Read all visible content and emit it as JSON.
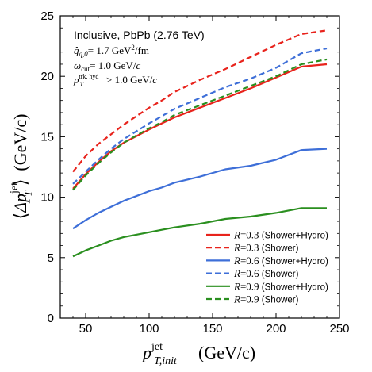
{
  "chart_data": {
    "type": "line",
    "title": "",
    "xlabel": {
      "base": "p",
      "sup": "jet",
      "sub": "T,init",
      "unit": "(GeV/c)"
    },
    "ylabel": {
      "open": "⟨",
      "base": "Δp",
      "sup": "jet",
      "sub": "T",
      "close": "⟩",
      "unit": "(GeV/c)"
    },
    "xlim": [
      30,
      250
    ],
    "ylim": [
      0,
      25
    ],
    "xticks": [
      50,
      100,
      150,
      200,
      250
    ],
    "yticks": [
      0,
      5,
      10,
      15,
      20,
      25
    ],
    "grid": false,
    "legend_position": "bottom-right",
    "annotations": {
      "header": "Inclusive, PbPb (2.76 TeV)",
      "qhat": {
        "sym": "q̂",
        "sub": "q,0",
        "eq": "= 1.7 GeV",
        "sup": "2",
        "tail": "/fm"
      },
      "omega": {
        "sym": "ω",
        "sub": "cut",
        "eq": "= 1.0 GeV/",
        "tail": "c"
      },
      "ptcut": {
        "sym": "p",
        "sup": "trk, hyd",
        "sub": "T",
        "eq": "> 1.0 GeV/",
        "tail": "c"
      }
    },
    "x": [
      40,
      50,
      60,
      70,
      80,
      100,
      110,
      120,
      140,
      160,
      180,
      200,
      220,
      240
    ],
    "series": [
      {
        "r_label": "R",
        "r_value": "=0.3",
        "name": "(Shower+Hydro)",
        "color": "#e8231c",
        "dash": false,
        "values": [
          10.7,
          11.9,
          12.9,
          13.8,
          14.5,
          15.6,
          16.1,
          16.6,
          17.4,
          18.2,
          19.0,
          19.9,
          20.8,
          21.0
        ]
      },
      {
        "r_label": "R",
        "r_value": "=0.3",
        "name": "(Shower)",
        "color": "#e8231c",
        "dash": true,
        "values": [
          12.1,
          13.4,
          14.4,
          15.2,
          16.0,
          17.4,
          18.0,
          18.7,
          19.7,
          20.6,
          21.6,
          22.6,
          23.5,
          23.8
        ]
      },
      {
        "r_label": "R",
        "r_value": "=0.6",
        "name": "(Shower+Hydro)",
        "color": "#3e6fd8",
        "dash": false,
        "values": [
          7.4,
          8.1,
          8.7,
          9.2,
          9.7,
          10.5,
          10.8,
          11.2,
          11.7,
          12.3,
          12.6,
          13.1,
          13.9,
          14.0
        ]
      },
      {
        "r_label": "R",
        "r_value": "=0.6",
        "name": "(Shower)",
        "color": "#3e6fd8",
        "dash": true,
        "values": [
          11.1,
          12.1,
          13.1,
          14.0,
          14.8,
          16.1,
          16.7,
          17.3,
          18.2,
          19.1,
          19.8,
          20.7,
          21.9,
          22.3
        ]
      },
      {
        "r_label": "R",
        "r_value": "=0.9",
        "name": "(Shower+Hydro)",
        "color": "#2a8f1f",
        "dash": false,
        "values": [
          5.1,
          5.6,
          6.0,
          6.4,
          6.7,
          7.1,
          7.3,
          7.5,
          7.8,
          8.2,
          8.4,
          8.7,
          9.1,
          9.1
        ]
      },
      {
        "r_label": "R",
        "r_value": "=0.9",
        "name": "(Shower)",
        "color": "#2a8f1f",
        "dash": true,
        "values": [
          10.6,
          11.8,
          12.8,
          13.7,
          14.5,
          15.7,
          16.2,
          16.8,
          17.6,
          18.4,
          19.2,
          20.0,
          21.0,
          21.4
        ]
      }
    ]
  }
}
